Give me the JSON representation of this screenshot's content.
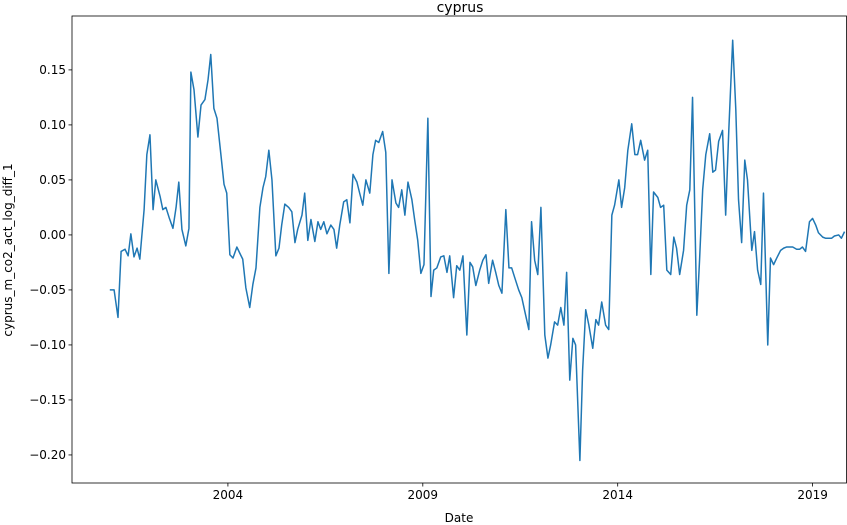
{
  "chart_data": {
    "type": "line",
    "title": "cyprus",
    "x_label": "Date",
    "y_label": "cyprus_m_co2_act_log_diff_1",
    "color": "#1f77b4",
    "grid": false,
    "xlim": [
      2000,
      2019.87
    ],
    "xticks": [
      2004,
      2009,
      2014,
      2019
    ],
    "ylim": [
      -0.2255,
      0.199
    ],
    "yticks": [
      {
        "value": -0.2,
        "label": "−0.20"
      },
      {
        "value": -0.15,
        "label": "−0.15"
      },
      {
        "value": -0.1,
        "label": "−0.10"
      },
      {
        "value": -0.05,
        "label": "−0.05"
      },
      {
        "value": 0,
        "label": "0.00"
      },
      0.05,
      {
        "value": 0.1,
        "label": "0.10"
      },
      0.15
    ],
    "x": [
      2000.97,
      2001.08,
      2001.18,
      2001.26,
      2001.36,
      2001.44,
      2001.51,
      2001.59,
      2001.67,
      2001.74,
      2001.85,
      2001.92,
      2002.0,
      2002.08,
      2002.15,
      2002.26,
      2002.33,
      2002.41,
      2002.49,
      2002.59,
      2002.67,
      2002.74,
      2002.82,
      2002.92,
      2003.0,
      2003.05,
      2003.13,
      2003.23,
      2003.31,
      2003.41,
      2003.49,
      2003.56,
      2003.64,
      2003.72,
      2003.82,
      2003.9,
      2003.97,
      2004.05,
      2004.13,
      2004.23,
      2004.31,
      2004.38,
      2004.46,
      2004.56,
      2004.64,
      2004.72,
      2004.82,
      2004.9,
      2004.97,
      2005.05,
      2005.13,
      2005.23,
      2005.31,
      2005.38,
      2005.46,
      2005.56,
      2005.64,
      2005.72,
      2005.79,
      2005.9,
      2005.97,
      2006.05,
      2006.13,
      2006.23,
      2006.31,
      2006.38,
      2006.46,
      2006.54,
      2006.64,
      2006.72,
      2006.79,
      2006.87,
      2006.97,
      2007.05,
      2007.13,
      2007.21,
      2007.31,
      2007.38,
      2007.46,
      2007.54,
      2007.64,
      2007.72,
      2007.79,
      2007.87,
      2007.97,
      2008.05,
      2008.13,
      2008.21,
      2008.31,
      2008.38,
      2008.46,
      2008.54,
      2008.62,
      2008.72,
      2008.79,
      2008.87,
      2008.95,
      2009.03,
      2009.13,
      2009.21,
      2009.28,
      2009.36,
      2009.46,
      2009.54,
      2009.62,
      2009.69,
      2009.79,
      2009.87,
      2009.95,
      2010.03,
      2010.13,
      2010.21,
      2010.28,
      2010.36,
      2010.46,
      2010.54,
      2010.62,
      2010.69,
      2010.79,
      2010.87,
      2010.95,
      2011.03,
      2011.13,
      2011.21,
      2011.28,
      2011.36,
      2011.46,
      2011.54,
      2011.62,
      2011.72,
      2011.79,
      2011.87,
      2011.95,
      2012.03,
      2012.13,
      2012.21,
      2012.28,
      2012.38,
      2012.46,
      2012.54,
      2012.62,
      2012.69,
      2012.77,
      2012.85,
      2012.92,
      2013.03,
      2013.1,
      2013.18,
      2013.26,
      2013.36,
      2013.44,
      2013.51,
      2013.59,
      2013.69,
      2013.77,
      2013.85,
      2013.92,
      2014.03,
      2014.1,
      2014.18,
      2014.26,
      2014.36,
      2014.44,
      2014.51,
      2014.59,
      2014.69,
      2014.77,
      2014.85,
      2014.92,
      2015.03,
      2015.1,
      2015.18,
      2015.26,
      2015.36,
      2015.44,
      2015.51,
      2015.59,
      2015.69,
      2015.77,
      2015.85,
      2015.92,
      2016.03,
      2016.1,
      2016.18,
      2016.26,
      2016.36,
      2016.44,
      2016.51,
      2016.59,
      2016.69,
      2016.77,
      2016.85,
      2016.95,
      2017.03,
      2017.1,
      2017.18,
      2017.26,
      2017.33,
      2017.44,
      2017.51,
      2017.59,
      2017.67,
      2017.74,
      2017.85,
      2017.92,
      2018.0,
      2018.08,
      2018.18,
      2018.26,
      2018.33,
      2018.41,
      2018.49,
      2018.59,
      2018.67,
      2018.74,
      2018.82,
      2018.92,
      2019.0,
      2019.08,
      2019.15,
      2019.26,
      2019.33,
      2019.41,
      2019.49,
      2019.56,
      2019.67,
      2019.74,
      2019.82
    ],
    "values": [
      -0.05,
      -0.05,
      -0.075,
      -0.015,
      -0.013,
      -0.019,
      0.001,
      -0.02,
      -0.012,
      -0.022,
      0.023,
      0.073,
      0.091,
      0.023,
      0.05,
      0.035,
      0.023,
      0.025,
      0.016,
      0.006,
      0.025,
      0.048,
      0.005,
      -0.01,
      0.006,
      0.148,
      0.132,
      0.089,
      0.118,
      0.123,
      0.141,
      0.164,
      0.115,
      0.106,
      0.073,
      0.046,
      0.038,
      -0.018,
      -0.021,
      -0.011,
      -0.017,
      -0.022,
      -0.048,
      -0.066,
      -0.045,
      -0.03,
      0.025,
      0.043,
      0.053,
      0.077,
      0.05,
      -0.019,
      -0.012,
      0.009,
      0.028,
      0.025,
      0.021,
      -0.007,
      0.005,
      0.018,
      0.038,
      -0.005,
      0.014,
      -0.006,
      0.012,
      0.005,
      0.012,
      0.001,
      0.009,
      0.005,
      -0.012,
      0.009,
      0.03,
      0.032,
      0.011,
      0.055,
      0.048,
      0.038,
      0.027,
      0.05,
      0.038,
      0.073,
      0.086,
      0.084,
      0.094,
      0.075,
      -0.035,
      0.05,
      0.029,
      0.025,
      0.041,
      0.018,
      0.048,
      0.032,
      0.014,
      -0.005,
      -0.035,
      -0.027,
      0.106,
      -0.056,
      -0.032,
      -0.03,
      -0.02,
      -0.019,
      -0.034,
      -0.019,
      -0.057,
      -0.028,
      -0.032,
      -0.019,
      -0.091,
      -0.025,
      -0.029,
      -0.046,
      -0.032,
      -0.023,
      -0.018,
      -0.044,
      -0.023,
      -0.034,
      -0.046,
      -0.053,
      0.023,
      -0.03,
      -0.03,
      -0.039,
      -0.05,
      -0.057,
      -0.07,
      -0.086,
      0.012,
      -0.023,
      -0.036,
      0.025,
      -0.091,
      -0.112,
      -0.1,
      -0.079,
      -0.082,
      -0.066,
      -0.082,
      -0.034,
      -0.132,
      -0.094,
      -0.1,
      -0.205,
      -0.123,
      -0.068,
      -0.082,
      -0.103,
      -0.077,
      -0.082,
      -0.061,
      -0.082,
      -0.086,
      0.018,
      0.027,
      0.05,
      0.025,
      0.043,
      0.077,
      0.101,
      0.073,
      0.073,
      0.086,
      0.068,
      0.077,
      -0.036,
      0.039,
      0.034,
      0.025,
      0.027,
      -0.032,
      -0.036,
      -0.002,
      -0.012,
      -0.036,
      -0.014,
      0.027,
      0.041,
      0.125,
      -0.073,
      -0.023,
      0.041,
      0.073,
      0.092,
      0.057,
      0.059,
      0.085,
      0.095,
      0.018,
      0.095,
      0.177,
      0.114,
      0.032,
      -0.007,
      0.068,
      0.05,
      -0.014,
      0.003,
      -0.032,
      -0.045,
      0.038,
      -0.1,
      -0.021,
      -0.027,
      -0.021,
      -0.014,
      -0.012,
      -0.011,
      -0.011,
      -0.011,
      -0.013,
      -0.013,
      -0.011,
      -0.015,
      0.012,
      0.015,
      0.009,
      0.002,
      -0.002,
      -0.003,
      -0.003,
      -0.003,
      -0.001,
      0,
      -0.003,
      0.003
    ]
  }
}
